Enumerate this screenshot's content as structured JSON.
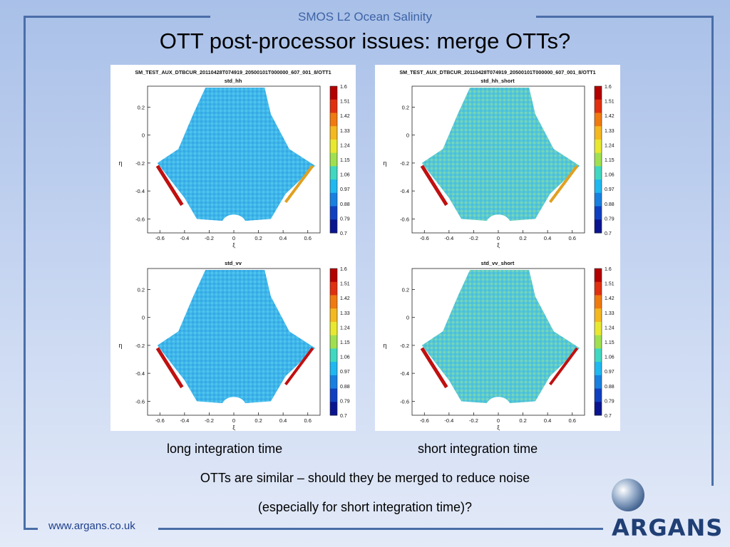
{
  "header": {
    "text": "SMOS L2 Ocean Salinity"
  },
  "title": "OTT post-processor issues: merge OTTs?",
  "panels": [
    {
      "file_title": "SM_TEST_AUX_DTBCUR_20110428T074919_20500101T000000_607_001_8/OTT1",
      "plots": [
        {
          "title": "std_hh"
        },
        {
          "title": "std_vv"
        }
      ]
    },
    {
      "file_title": "SM_TEST_AUX_DTBCUR_20110428T074919_20500101T000000_607_001_8/OTT1",
      "plots": [
        {
          "title": "std_hh_short"
        },
        {
          "title": "std_vv_short"
        }
      ]
    }
  ],
  "axes": {
    "xlabel": "ξ",
    "ylabel": "η",
    "xticks": [
      "-0.6",
      "-0.4",
      "-0.2",
      "0",
      "0.2",
      "0.4",
      "0.6"
    ],
    "yticks": [
      "0.2",
      "0",
      "-0.2",
      "-0.4",
      "-0.6"
    ]
  },
  "colorbar": {
    "ticks": [
      "1.6",
      "1.51",
      "1.42",
      "1.33",
      "1.24",
      "1.15",
      "1.06",
      "0.97",
      "0.88",
      "0.79",
      "0.7"
    ],
    "colors": [
      "#b30000",
      "#e03010",
      "#f07a10",
      "#f4b820",
      "#e8e830",
      "#a0e050",
      "#40d8c0",
      "#20b8f0",
      "#1880e0",
      "#1040c0",
      "#0a1490"
    ]
  },
  "captions": {
    "long": "long integration time",
    "short": "short integration time"
  },
  "note": {
    "line1": "OTTs are similar – should they be merged to reduce noise",
    "line2": "(especially for short integration time)?"
  },
  "footer": {
    "url": "www.argans.co.uk"
  },
  "logo": {
    "text": "ARGANS"
  }
}
